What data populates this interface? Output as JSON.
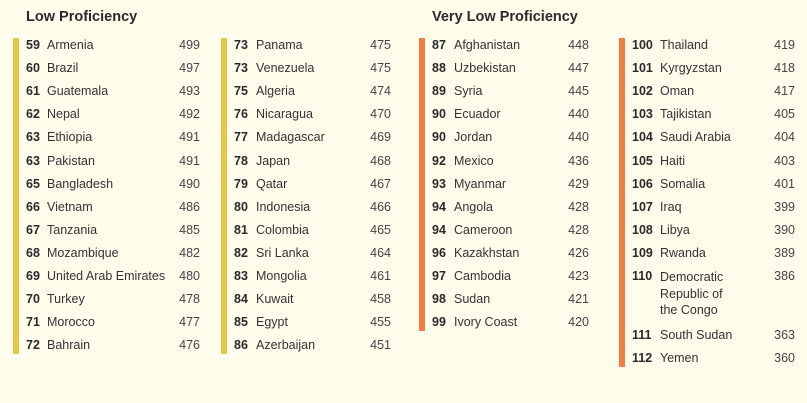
{
  "sections": {
    "low": {
      "title": "Low Proficiency",
      "color": "#e8c64a"
    },
    "very_low": {
      "title": "Very Low Proficiency",
      "color": "#f27d45"
    }
  },
  "columns": [
    {
      "section": "low",
      "entries": [
        {
          "rank": "59",
          "country": "Armenia",
          "score": "499"
        },
        {
          "rank": "60",
          "country": "Brazil",
          "score": "497"
        },
        {
          "rank": "61",
          "country": "Guatemala",
          "score": "493"
        },
        {
          "rank": "62",
          "country": "Nepal",
          "score": "492"
        },
        {
          "rank": "63",
          "country": "Ethiopia",
          "score": "491"
        },
        {
          "rank": "63",
          "country": "Pakistan",
          "score": "491"
        },
        {
          "rank": "65",
          "country": "Bangladesh",
          "score": "490"
        },
        {
          "rank": "66",
          "country": "Vietnam",
          "score": "486"
        },
        {
          "rank": "67",
          "country": "Tanzania",
          "score": "485"
        },
        {
          "rank": "68",
          "country": "Mozambique",
          "score": "482"
        },
        {
          "rank": "69",
          "country": "United Arab Emirates",
          "score": "480"
        },
        {
          "rank": "70",
          "country": "Turkey",
          "score": "478"
        },
        {
          "rank": "71",
          "country": "Morocco",
          "score": "477"
        },
        {
          "rank": "72",
          "country": "Bahrain",
          "score": "476"
        }
      ]
    },
    {
      "section": "low",
      "entries": [
        {
          "rank": "73",
          "country": "Panama",
          "score": "475"
        },
        {
          "rank": "73",
          "country": "Venezuela",
          "score": "475"
        },
        {
          "rank": "75",
          "country": "Algeria",
          "score": "474"
        },
        {
          "rank": "76",
          "country": "Nicaragua",
          "score": "470"
        },
        {
          "rank": "77",
          "country": "Madagascar",
          "score": "469"
        },
        {
          "rank": "78",
          "country": "Japan",
          "score": "468"
        },
        {
          "rank": "79",
          "country": "Qatar",
          "score": "467"
        },
        {
          "rank": "80",
          "country": "Indonesia",
          "score": "466"
        },
        {
          "rank": "81",
          "country": "Colombia",
          "score": "465"
        },
        {
          "rank": "82",
          "country": "Sri Lanka",
          "score": "464"
        },
        {
          "rank": "83",
          "country": "Mongolia",
          "score": "461"
        },
        {
          "rank": "84",
          "country": "Kuwait",
          "score": "458"
        },
        {
          "rank": "85",
          "country": "Egypt",
          "score": "455"
        },
        {
          "rank": "86",
          "country": "Azerbaijan",
          "score": "451"
        }
      ]
    },
    {
      "section": "very_low",
      "entries": [
        {
          "rank": "87",
          "country": "Afghanistan",
          "score": "448"
        },
        {
          "rank": "88",
          "country": "Uzbekistan",
          "score": "447"
        },
        {
          "rank": "89",
          "country": "Syria",
          "score": "445"
        },
        {
          "rank": "90",
          "country": "Ecuador",
          "score": "440"
        },
        {
          "rank": "90",
          "country": "Jordan",
          "score": "440"
        },
        {
          "rank": "92",
          "country": "Mexico",
          "score": "436"
        },
        {
          "rank": "93",
          "country": "Myanmar",
          "score": "429"
        },
        {
          "rank": "94",
          "country": "Angola",
          "score": "428"
        },
        {
          "rank": "94",
          "country": "Cameroon",
          "score": "428"
        },
        {
          "rank": "96",
          "country": "Kazakhstan",
          "score": "426"
        },
        {
          "rank": "97",
          "country": "Cambodia",
          "score": "423"
        },
        {
          "rank": "98",
          "country": "Sudan",
          "score": "421"
        },
        {
          "rank": "99",
          "country": "Ivory Coast",
          "score": "420"
        }
      ]
    },
    {
      "section": "very_low",
      "entries": [
        {
          "rank": "100",
          "country": "Thailand",
          "score": "419"
        },
        {
          "rank": "101",
          "country": "Kyrgyzstan",
          "score": "418"
        },
        {
          "rank": "102",
          "country": "Oman",
          "score": "417"
        },
        {
          "rank": "103",
          "country": "Tajikistan",
          "score": "405"
        },
        {
          "rank": "104",
          "country": "Saudi Arabia",
          "score": "404"
        },
        {
          "rank": "105",
          "country": "Haiti",
          "score": "403"
        },
        {
          "rank": "106",
          "country": "Somalia",
          "score": "401"
        },
        {
          "rank": "107",
          "country": "Iraq",
          "score": "399"
        },
        {
          "rank": "108",
          "country": "Libya",
          "score": "390"
        },
        {
          "rank": "109",
          "country": "Rwanda",
          "score": "389"
        },
        {
          "rank": "110",
          "country": "Democratic Republic of the Congo",
          "score": "386"
        },
        {
          "rank": "111",
          "country": "South Sudan",
          "score": "363"
        },
        {
          "rank": "112",
          "country": "Yemen",
          "score": "360"
        }
      ]
    }
  ]
}
